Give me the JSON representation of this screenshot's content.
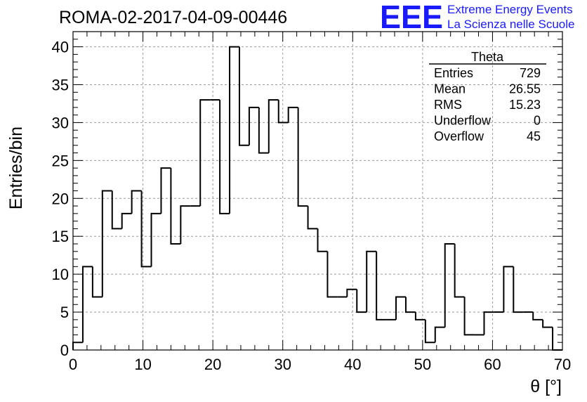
{
  "header": {
    "run_title": "ROMA-02-2017-04-09-00446",
    "logo_letters": "EEE",
    "brand_line1": "Extreme Energy Events",
    "brand_line2": "La Scienza nelle Scuole",
    "brand_color": "#1a1aff"
  },
  "stats_box": {
    "name": "Theta",
    "rows": [
      {
        "label": "Entries",
        "value": "729"
      },
      {
        "label": "Mean",
        "value": "26.55"
      },
      {
        "label": "RMS",
        "value": "15.23"
      },
      {
        "label": "Underflow",
        "value": "0"
      },
      {
        "label": "Overflow",
        "value": "45"
      }
    ]
  },
  "chart_data": {
    "type": "histogram",
    "xlabel": "θ [°]",
    "ylabel": "Entries/bin",
    "xlim": [
      0,
      70
    ],
    "ylim": [
      0,
      42
    ],
    "x_ticks": [
      0,
      10,
      20,
      30,
      40,
      50,
      60,
      70
    ],
    "y_ticks": [
      0,
      5,
      10,
      15,
      20,
      25,
      30,
      35,
      40
    ],
    "grid": true,
    "line_color": "#000000",
    "bin_width": 1.4,
    "values": [
      1,
      11,
      7,
      21,
      16,
      18,
      21,
      11,
      18,
      24,
      14,
      19,
      19,
      33,
      33,
      18,
      40,
      27,
      32,
      26,
      33,
      30,
      32,
      19,
      16,
      13,
      7,
      7,
      8,
      5,
      13,
      4,
      4,
      7,
      5,
      4,
      1,
      3,
      14,
      7,
      2,
      2,
      5,
      5,
      11,
      5,
      5,
      4,
      3,
      0
    ]
  }
}
